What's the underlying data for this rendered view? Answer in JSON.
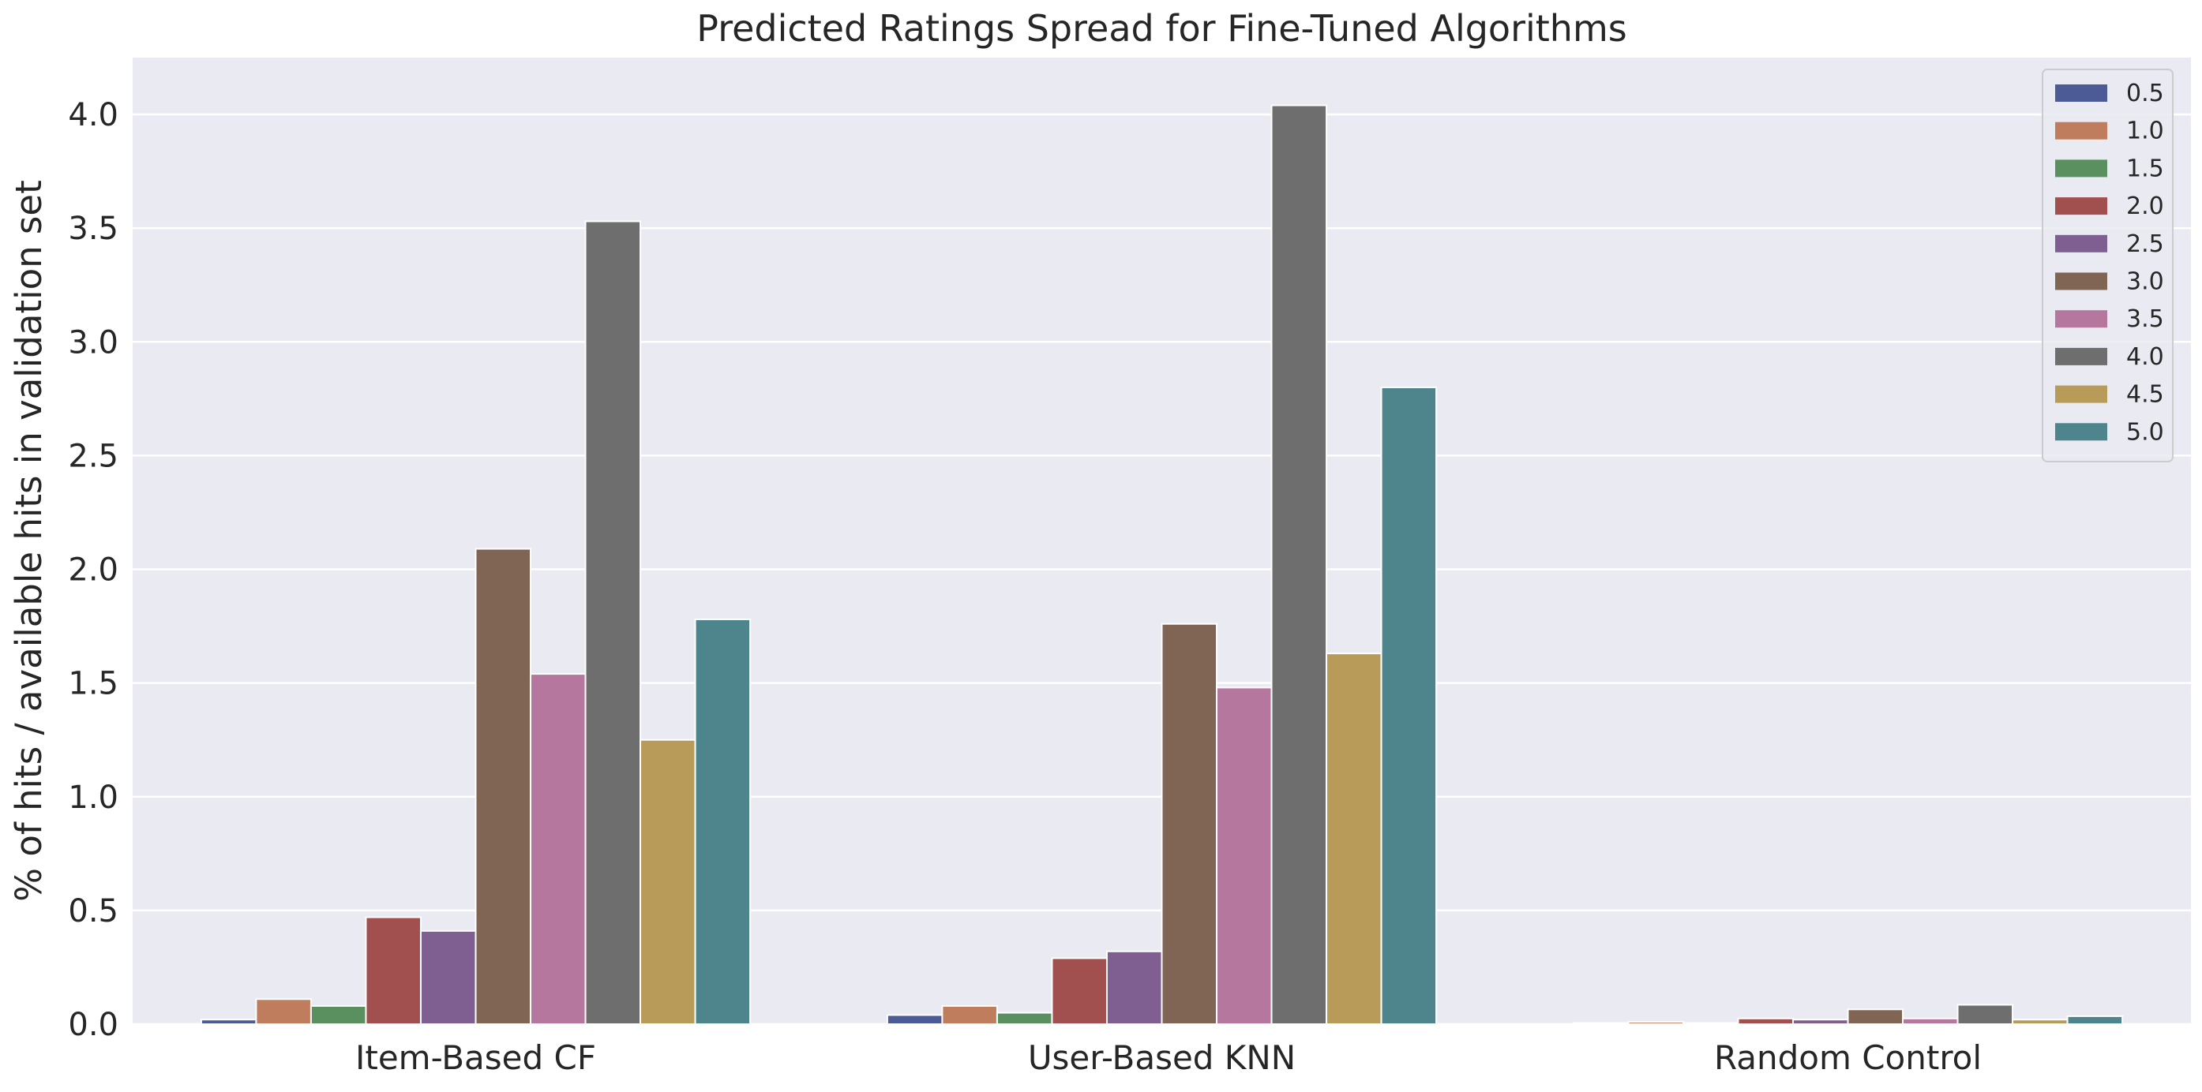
{
  "chart_data": {
    "type": "bar",
    "title": "Predicted Ratings Spread for Fine-Tuned Algorithms",
    "xlabel": "",
    "ylabel": "% of hits / available hits in validation set",
    "ylim": [
      0,
      4.25
    ],
    "yticks": [
      "0.0",
      "0.5",
      "1.0",
      "1.5",
      "2.0",
      "2.5",
      "3.0",
      "3.5",
      "4.0"
    ],
    "grid": true,
    "legend_position": "top-right",
    "categories": [
      "Item-Based CF",
      "User-Based KNN",
      "Random Control"
    ],
    "series": [
      {
        "name": "0.5",
        "color": "#4c5a95",
        "values": [
          0.02,
          0.04,
          0.005
        ]
      },
      {
        "name": "1.0",
        "color": "#c07d5e",
        "values": [
          0.11,
          0.08,
          0.01
        ]
      },
      {
        "name": "1.5",
        "color": "#5a8f60",
        "values": [
          0.08,
          0.05,
          0.005
        ]
      },
      {
        "name": "2.0",
        "color": "#a24f4f",
        "values": [
          0.47,
          0.29,
          0.025
        ]
      },
      {
        "name": "2.5",
        "color": "#7f5f91",
        "values": [
          0.41,
          0.32,
          0.02
        ]
      },
      {
        "name": "3.0",
        "color": "#806555",
        "values": [
          2.09,
          1.76,
          0.065
        ]
      },
      {
        "name": "3.5",
        "color": "#b6779f",
        "values": [
          1.54,
          1.48,
          0.025
        ]
      },
      {
        "name": "4.0",
        "color": "#6e6e6e",
        "values": [
          3.53,
          4.04,
          0.085
        ]
      },
      {
        "name": "4.5",
        "color": "#b89a59",
        "values": [
          1.25,
          1.63,
          0.02
        ]
      },
      {
        "name": "5.0",
        "color": "#4e848c",
        "values": [
          1.78,
          2.8,
          0.035
        ]
      }
    ]
  }
}
